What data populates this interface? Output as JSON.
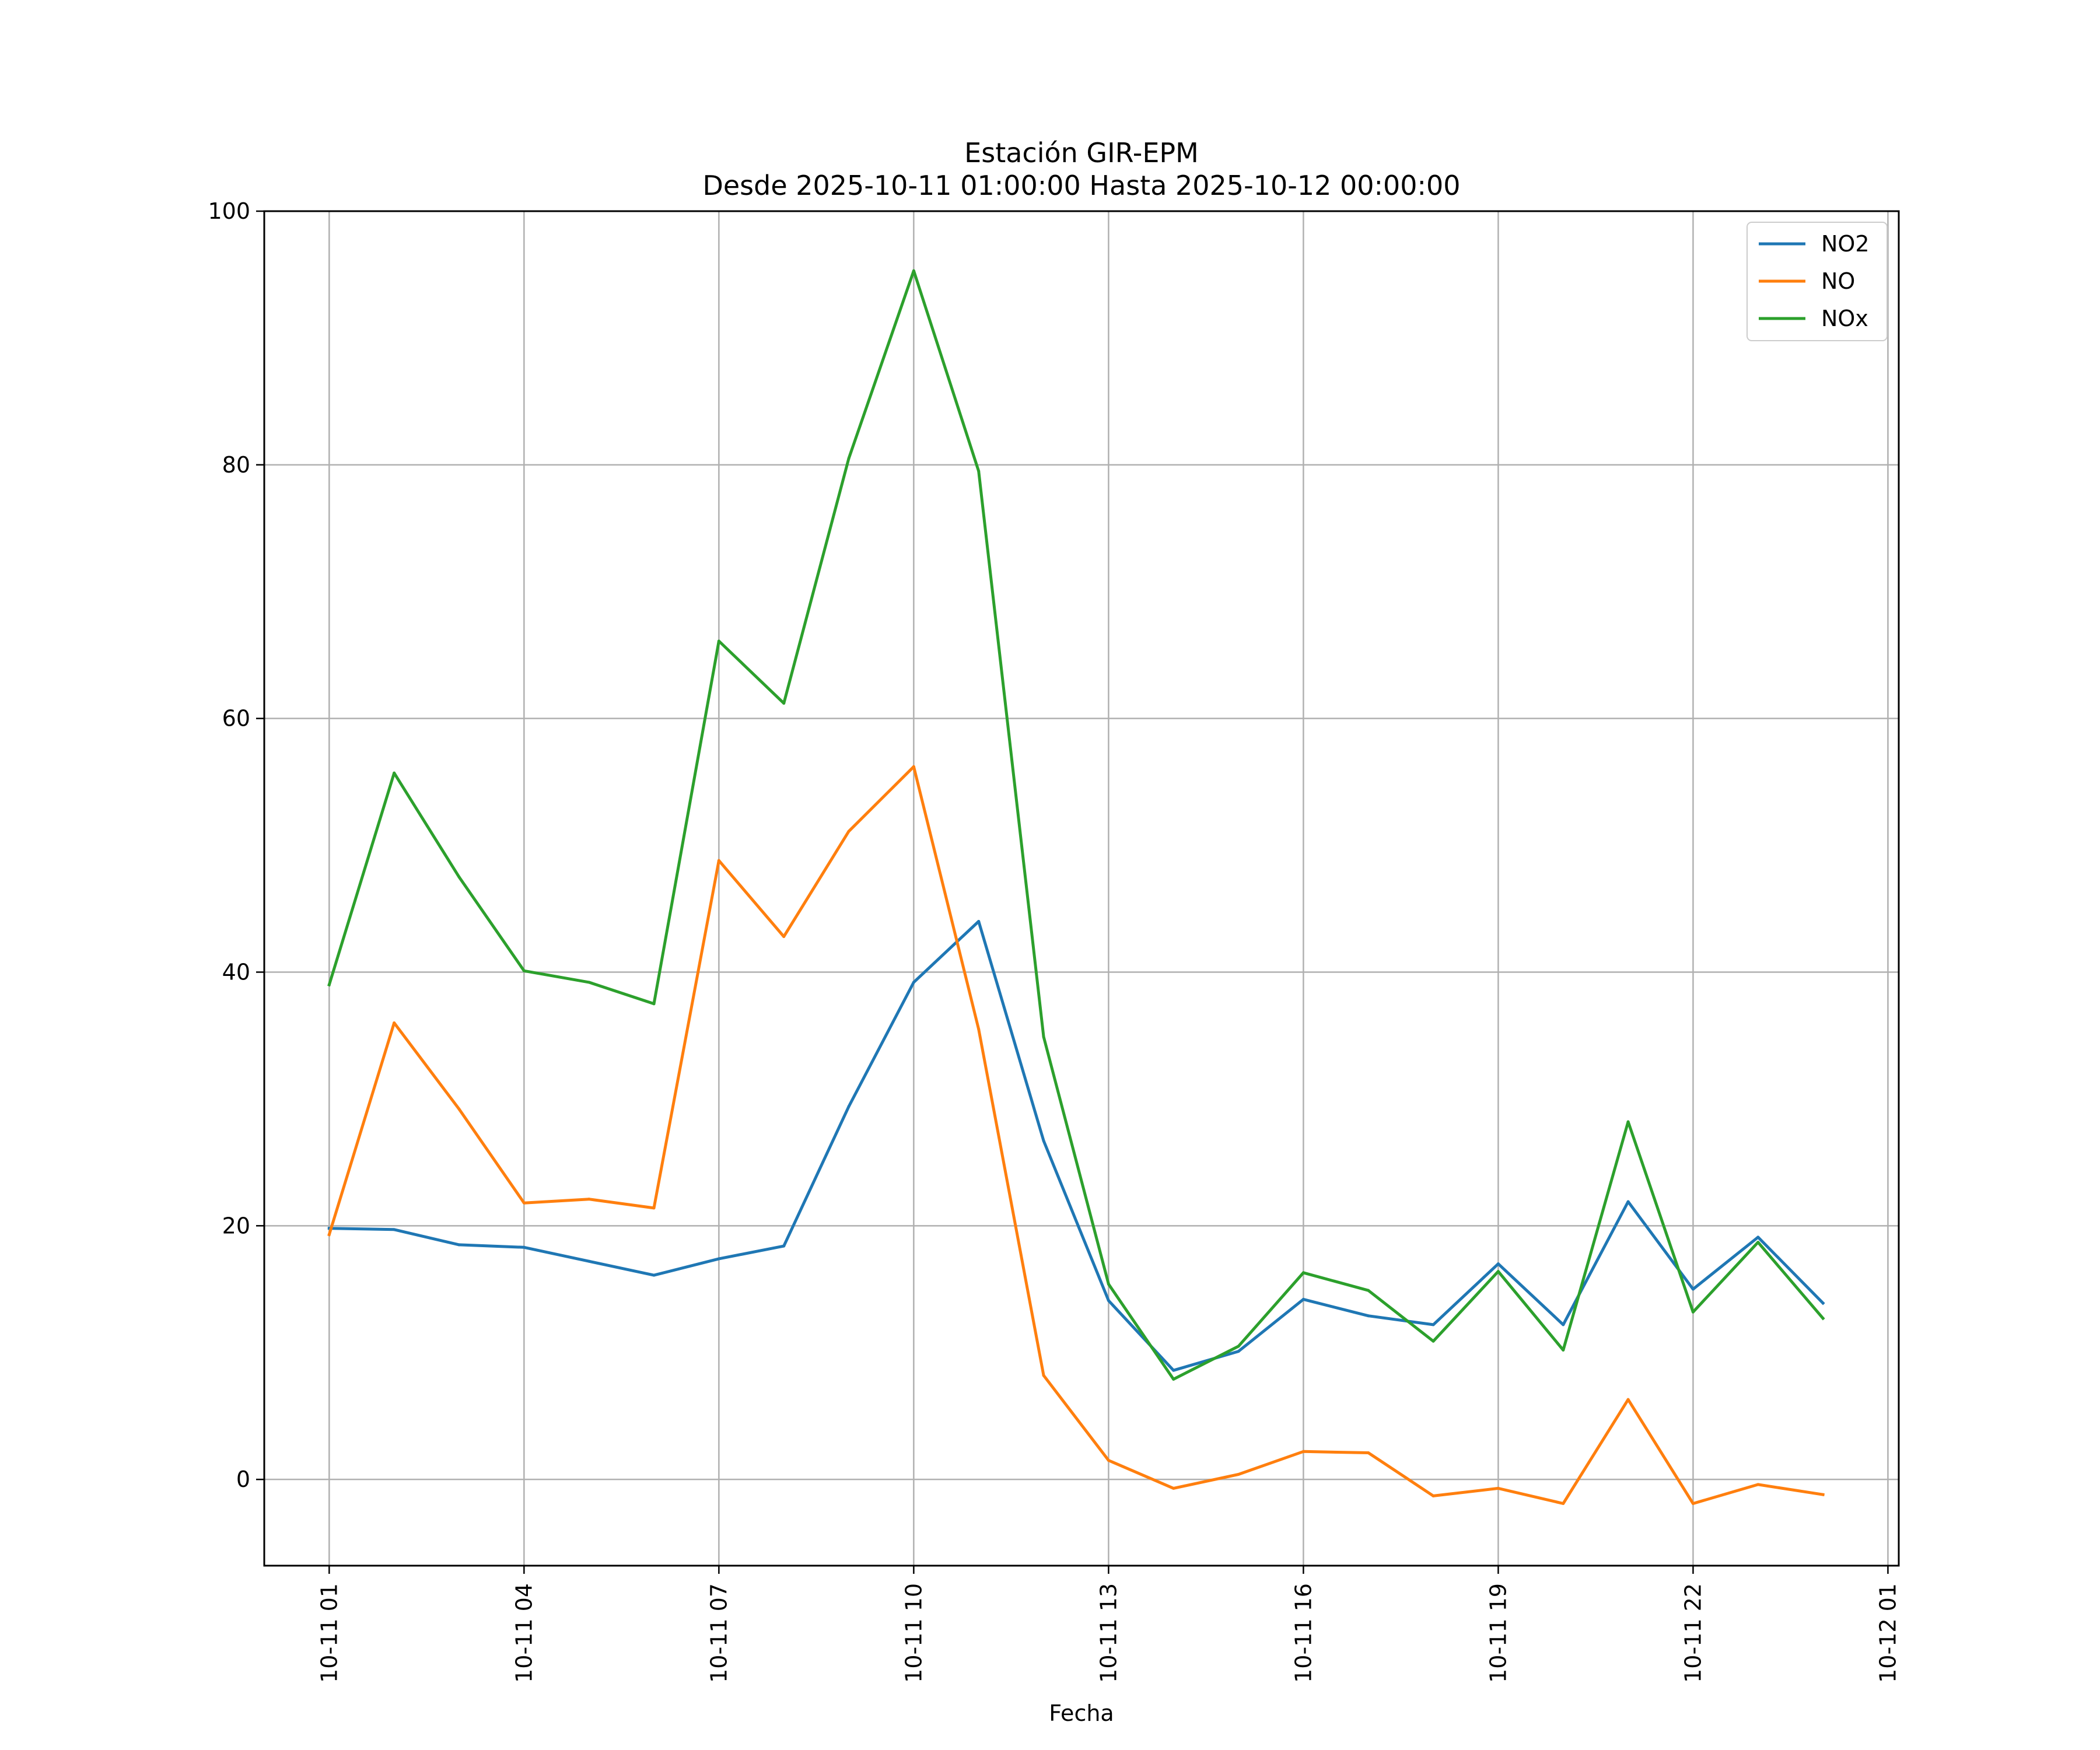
{
  "chart_data": {
    "type": "line",
    "title": "Estación GIR-EPM",
    "subtitle": "Desde 2025-10-11 01:00:00 Hasta 2025-10-12 00:00:00",
    "xlabel": "Fecha",
    "ylabel": "",
    "ylim": [
      -6.8,
      100
    ],
    "xlim": [
      "2025-10-11 00:00",
      "2025-10-12 01:10"
    ],
    "grid": true,
    "legend_position": "top-right",
    "x": [
      "2025-10-11 01:00",
      "2025-10-11 02:00",
      "2025-10-11 03:00",
      "2025-10-11 04:00",
      "2025-10-11 05:00",
      "2025-10-11 06:00",
      "2025-10-11 07:00",
      "2025-10-11 08:00",
      "2025-10-11 09:00",
      "2025-10-11 10:00",
      "2025-10-11 11:00",
      "2025-10-11 12:00",
      "2025-10-11 13:00",
      "2025-10-11 14:00",
      "2025-10-11 15:00",
      "2025-10-11 16:00",
      "2025-10-11 17:00",
      "2025-10-11 18:00",
      "2025-10-11 19:00",
      "2025-10-11 20:00",
      "2025-10-11 21:00",
      "2025-10-11 22:00",
      "2025-10-11 23:00",
      "2025-10-12 00:00"
    ],
    "x_ticks": [
      {
        "value": "2025-10-11 01:00",
        "label": "10-11 01"
      },
      {
        "value": "2025-10-11 04:00",
        "label": "10-11 04"
      },
      {
        "value": "2025-10-11 07:00",
        "label": "10-11 07"
      },
      {
        "value": "2025-10-11 10:00",
        "label": "10-11 10"
      },
      {
        "value": "2025-10-11 13:00",
        "label": "10-11 13"
      },
      {
        "value": "2025-10-11 16:00",
        "label": "10-11 16"
      },
      {
        "value": "2025-10-11 19:00",
        "label": "10-11 19"
      },
      {
        "value": "2025-10-11 22:00",
        "label": "10-11 22"
      },
      {
        "value": "2025-10-12 01:00",
        "label": "10-12 01"
      }
    ],
    "y_ticks": [
      0,
      20,
      40,
      60,
      80,
      100
    ],
    "series": [
      {
        "name": "NO2",
        "color": "#1f77b4",
        "values": [
          19.8,
          19.7,
          18.5,
          18.3,
          17.2,
          16.1,
          17.4,
          18.4,
          29.4,
          39.2,
          44.0,
          26.7,
          14.1,
          8.6,
          10.1,
          14.2,
          12.9,
          12.2,
          17.0,
          12.2,
          21.9,
          15.0,
          19.1,
          13.9
        ]
      },
      {
        "name": "NO",
        "color": "#ff7f0e",
        "values": [
          19.3,
          36.0,
          29.2,
          21.8,
          22.1,
          21.4,
          48.8,
          42.8,
          51.1,
          56.2,
          35.5,
          8.2,
          1.5,
          -0.7,
          0.4,
          2.2,
          2.1,
          -1.3,
          -0.7,
          -1.9,
          6.3,
          -1.9,
          -0.4,
          -1.2
        ]
      },
      {
        "name": "NOx",
        "color": "#2ca02c",
        "values": [
          39.0,
          55.7,
          47.5,
          40.1,
          39.2,
          37.5,
          66.1,
          61.2,
          80.5,
          95.3,
          79.5,
          34.9,
          15.4,
          7.9,
          10.5,
          16.3,
          14.9,
          10.9,
          16.4,
          10.2,
          28.2,
          13.2,
          18.7,
          12.7
        ]
      }
    ]
  }
}
